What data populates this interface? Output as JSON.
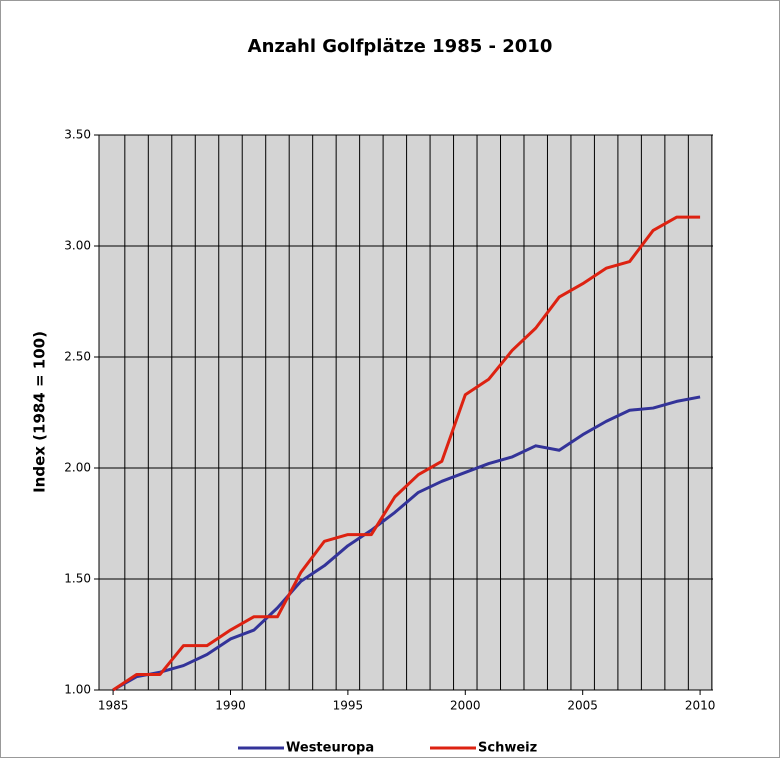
{
  "chart_data": {
    "type": "line",
    "title": "Anzahl Golfplätze 1985 - 2010",
    "y_label": "Index (1984 = 100)",
    "x": [
      1985,
      1986,
      1987,
      1988,
      1989,
      1990,
      1991,
      1992,
      1993,
      1994,
      1995,
      1996,
      1997,
      1998,
      1999,
      2000,
      2001,
      2002,
      2003,
      2004,
      2005,
      2006,
      2007,
      2008,
      2009,
      2010
    ],
    "series": [
      {
        "name": "Westeuropa",
        "color": "#333399",
        "values": [
          1.0,
          1.06,
          1.08,
          1.11,
          1.16,
          1.23,
          1.27,
          1.37,
          1.49,
          1.56,
          1.65,
          1.72,
          1.8,
          1.89,
          1.94,
          1.98,
          2.02,
          2.05,
          2.1,
          2.08,
          2.15,
          2.21,
          2.26,
          2.27,
          2.3,
          2.32
        ]
      },
      {
        "name": "Schweiz",
        "color": "#dd2211",
        "values": [
          1.0,
          1.07,
          1.07,
          1.2,
          1.2,
          1.27,
          1.33,
          1.33,
          1.53,
          1.67,
          1.7,
          1.7,
          1.87,
          1.97,
          2.03,
          2.33,
          2.4,
          2.53,
          2.63,
          2.77,
          2.83,
          2.9,
          2.93,
          3.07,
          3.13,
          3.13
        ]
      }
    ],
    "xlim": [
      1984.4,
      2010.55
    ],
    "xticks": [
      1985,
      1990,
      1995,
      2000,
      2005,
      2010
    ],
    "ylim": [
      1.0,
      3.5
    ],
    "yticks": [
      {
        "value": 1.0,
        "label": "1.00"
      },
      {
        "value": 1.5,
        "label": "1.50"
      },
      {
        "value": 2.0,
        "label": "2.00"
      },
      {
        "value": 2.5,
        "label": "2.50"
      },
      {
        "value": 3.0,
        "label": "3.00"
      },
      {
        "value": 3.5,
        "label": "3.50"
      }
    ],
    "grid": true
  }
}
